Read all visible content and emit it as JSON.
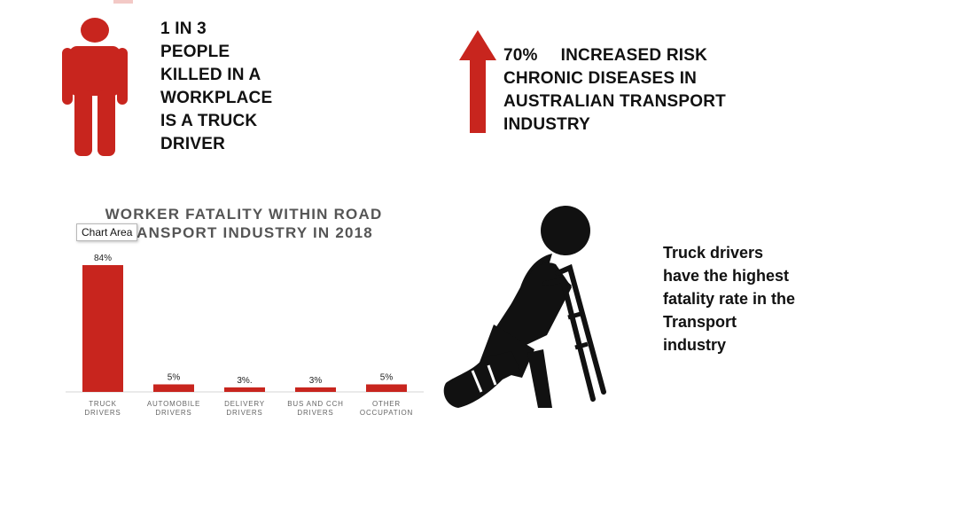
{
  "stat_person": {
    "lines": [
      "1 IN 3",
      "PEOPLE",
      "KILLED IN A",
      "WORKPLACE",
      "IS A TRUCK",
      "DRIVER"
    ]
  },
  "stat_risk": {
    "percent": "70%",
    "lines": [
      "INCREASED RISK",
      "CHRONIC DISEASES IN",
      "AUSTRALIAN TRANSPORT",
      "INDUSTRY"
    ]
  },
  "side_text": {
    "lines": [
      "Truck drivers",
      "have the highest",
      "fatality rate in the",
      "Transport",
      "industry"
    ]
  },
  "tooltip": {
    "label": "Chart Area"
  },
  "colors": {
    "accent": "#c8251e",
    "text": "#111111",
    "title": "#555555"
  },
  "icons": {
    "person": "person-icon",
    "arrow": "up-arrow-icon",
    "worker": "injured-worker-on-crutches-icon"
  },
  "chart_data": {
    "type": "bar",
    "title_lines": [
      "WORKER FATALITY WITHIN ROAD",
      "TRANSPORT INDUSTRY IN 2018"
    ],
    "categories": [
      [
        "TRUCK",
        "DRIVERS"
      ],
      [
        "AUTOMOBILE",
        "DRIVERS"
      ],
      [
        "DELIVERY",
        "DRIVERS"
      ],
      [
        "BUS AND CCH",
        "DRIVERS"
      ],
      [
        "OTHER",
        "OCCUPATION"
      ]
    ],
    "values": [
      84,
      5,
      3,
      3,
      5
    ],
    "data_labels": [
      "84%",
      "5%",
      "3%.",
      "3%",
      "5%"
    ],
    "color": "#c8251e",
    "ylim": [
      0,
      84
    ],
    "grid": false,
    "legend": false
  }
}
